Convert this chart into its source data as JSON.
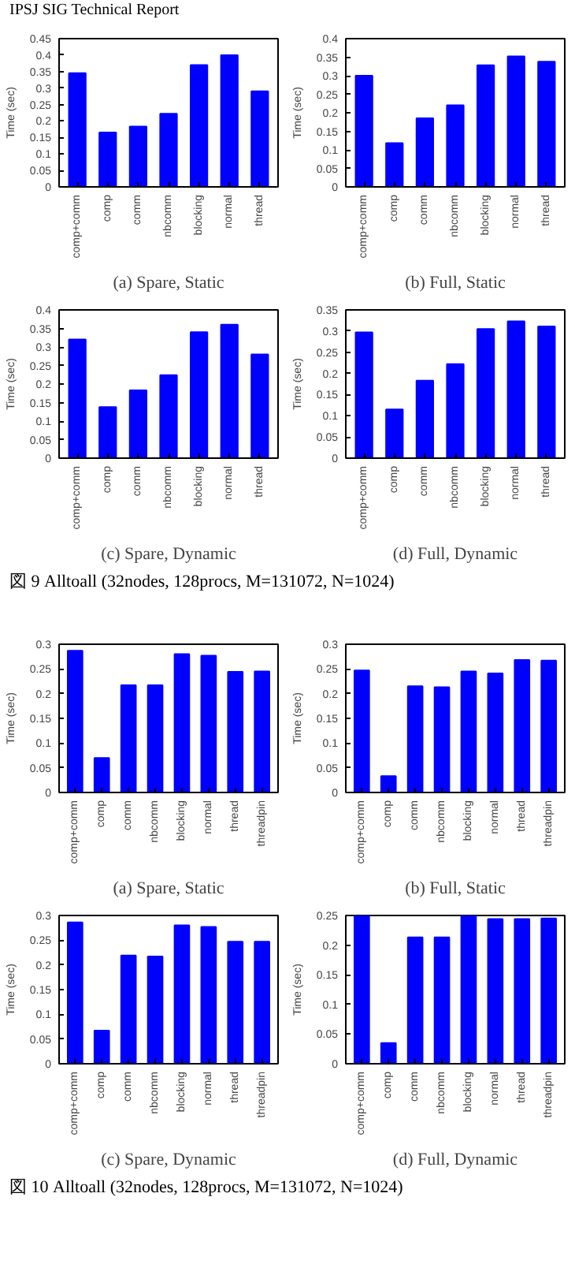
{
  "chart_data": [
    {
      "type": "bar",
      "title": "(a) Spare, Static",
      "ylabel": "Time (sec)",
      "annotations": [
        "IPSJ SIG Technical Report"
      ],
      "categories": [
        "comp+comm",
        "comp",
        "comm",
        "nbcomm",
        "blocking",
        "normal",
        "thread"
      ],
      "values": [
        0.345,
        0.165,
        0.183,
        0.222,
        0.37,
        0.4,
        0.29
      ],
      "color": "#0000ff",
      "ylim": [
        0,
        0.45
      ],
      "yticks": [
        0,
        0.05,
        0.1,
        0.15,
        0.2,
        0.25,
        0.3,
        0.35,
        0.4,
        0.45
      ],
      "grid": false
    },
    {
      "type": "bar",
      "title": "(b) Full, Static",
      "ylabel": "Time (sec)",
      "categories": [
        "comp+comm",
        "comp",
        "comm",
        "nbcomm",
        "blocking",
        "normal",
        "thread"
      ],
      "values": [
        0.3,
        0.118,
        0.185,
        0.22,
        0.328,
        0.352,
        0.338
      ],
      "color": "#0000ff",
      "ylim": [
        0,
        0.4
      ],
      "yticks": [
        0,
        0.05,
        0.1,
        0.15,
        0.2,
        0.25,
        0.3,
        0.35,
        0.4
      ],
      "grid": false
    },
    {
      "type": "bar",
      "title": "(c) Spare, Dynamic",
      "ylabel": "Time (sec)",
      "categories": [
        "comp+comm",
        "comp",
        "comm",
        "nbcomm",
        "blocking",
        "normal",
        "thread"
      ],
      "values": [
        0.32,
        0.138,
        0.183,
        0.224,
        0.34,
        0.36,
        0.28
      ],
      "color": "#0000ff",
      "ylim": [
        0,
        0.4
      ],
      "yticks": [
        0,
        0.05,
        0.1,
        0.15,
        0.2,
        0.25,
        0.3,
        0.35,
        0.4
      ],
      "grid": false
    },
    {
      "type": "bar",
      "title": "(d) Full, Dynamic",
      "ylabel": "Time (sec)",
      "annotations": [
        "図 9 Alltoall (32nodes, 128procs, M=131072, N=1024)"
      ],
      "categories": [
        "comp+comm",
        "comp",
        "comm",
        "nbcomm",
        "blocking",
        "normal",
        "thread"
      ],
      "values": [
        0.297,
        0.115,
        0.183,
        0.222,
        0.305,
        0.323,
        0.311
      ],
      "color": "#0000ff",
      "ylim": [
        0,
        0.35
      ],
      "yticks": [
        0,
        0.05,
        0.1,
        0.15,
        0.2,
        0.25,
        0.3,
        0.35
      ],
      "grid": false
    },
    {
      "type": "bar",
      "title": "(a) Spare, Static",
      "ylabel": "Time (sec)",
      "categories": [
        "comp+comm",
        "comp",
        "comm",
        "nbcomm",
        "blocking",
        "normal",
        "thread",
        "threadpin"
      ],
      "values": [
        0.287,
        0.07,
        0.217,
        0.217,
        0.28,
        0.277,
        0.244,
        0.245
      ],
      "color": "#0000ff",
      "ylim": [
        0,
        0.3
      ],
      "yticks": [
        0,
        0.05,
        0.1,
        0.15,
        0.2,
        0.25,
        0.3
      ],
      "grid": false
    },
    {
      "type": "bar",
      "title": "(b) Full, Static",
      "ylabel": "Time (sec)",
      "categories": [
        "comp+comm",
        "comp",
        "comm",
        "nbcomm",
        "blocking",
        "normal",
        "thread",
        "threadpin"
      ],
      "values": [
        0.247,
        0.033,
        0.215,
        0.213,
        0.245,
        0.241,
        0.268,
        0.267
      ],
      "color": "#0000ff",
      "ylim": [
        0,
        0.3
      ],
      "yticks": [
        0,
        0.05,
        0.1,
        0.15,
        0.2,
        0.25,
        0.3
      ],
      "grid": false
    },
    {
      "type": "bar",
      "title": "(c) Spare, Dynamic",
      "ylabel": "Time (sec)",
      "categories": [
        "comp+comm",
        "comp",
        "comm",
        "nbcomm",
        "blocking",
        "normal",
        "thread",
        "threadpin"
      ],
      "values": [
        0.286,
        0.067,
        0.219,
        0.217,
        0.28,
        0.277,
        0.247,
        0.247
      ],
      "color": "#0000ff",
      "ylim": [
        0,
        0.3
      ],
      "yticks": [
        0,
        0.05,
        0.1,
        0.15,
        0.2,
        0.25,
        0.3
      ],
      "grid": false
    },
    {
      "type": "bar",
      "title": "(d) Full, Dynamic",
      "ylabel": "Time (sec)",
      "annotations": [
        "図 10 Alltoall (32nodes, 128procs, M=131072, N=1024)"
      ],
      "categories": [
        "comp+comm",
        "comp",
        "comm",
        "nbcomm",
        "blocking",
        "normal",
        "thread",
        "threadpin"
      ],
      "values": [
        0.25,
        0.035,
        0.213,
        0.213,
        0.25,
        0.244,
        0.244,
        0.245
      ],
      "color": "#0000ff",
      "ylim": [
        0,
        0.25
      ],
      "yticks": [
        0,
        0.05,
        0.1,
        0.15,
        0.2,
        0.25
      ],
      "grid": false
    }
  ]
}
